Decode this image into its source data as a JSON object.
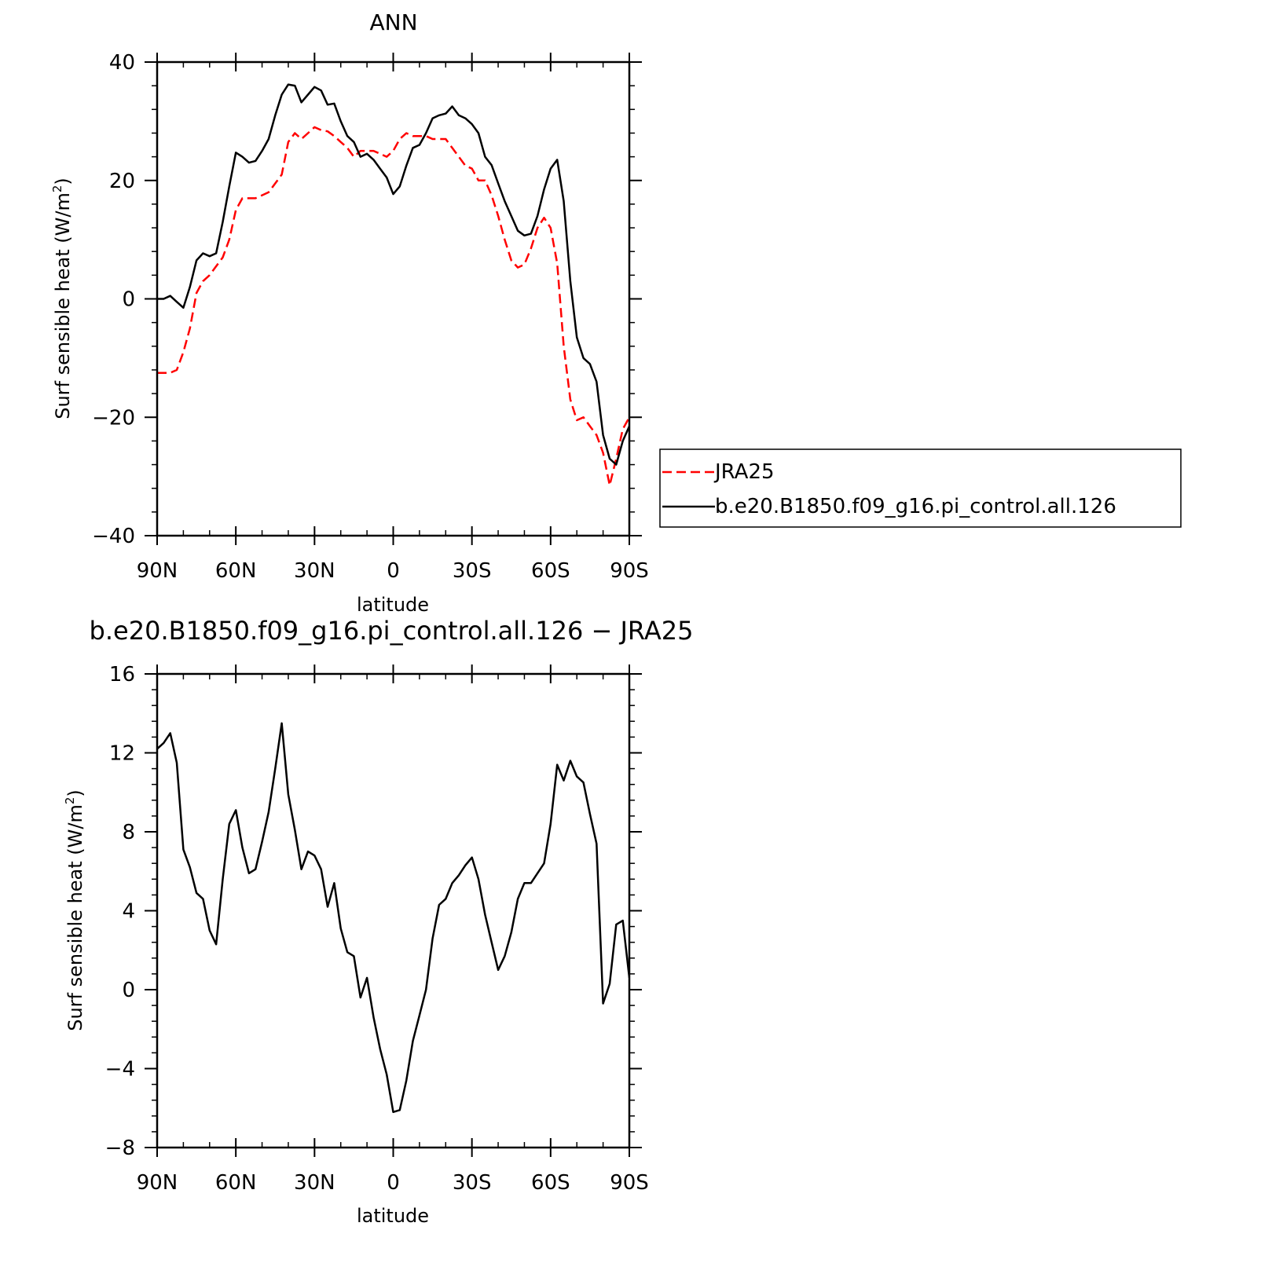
{
  "chart_data": [
    {
      "type": "line",
      "title": "ANN",
      "xlabel": "latitude",
      "ylabel": "Surf sensible heat (W/m",
      "ylabel_sup": "2",
      "ylabel_end": ")",
      "xlim": [
        90,
        -90
      ],
      "ylim": [
        -40,
        40
      ],
      "x_ticks": [
        90,
        60,
        30,
        0,
        -30,
        -60,
        -90
      ],
      "x_tick_labels": [
        "90N",
        "60N",
        "30N",
        "0",
        "30S",
        "60S",
        "90S"
      ],
      "y_ticks": [
        -40,
        -20,
        0,
        20,
        40
      ],
      "y_tick_labels": [
        "−40",
        "−20",
        "0",
        "20",
        "40"
      ],
      "legend": "right",
      "series": [
        {
          "name": "JRA25",
          "color": "#ff0000",
          "dash": "dashed",
          "x": [
            90,
            87.5,
            85,
            82.5,
            80,
            77.5,
            75,
            72.5,
            70,
            67.5,
            65,
            62.5,
            60,
            57.5,
            55,
            52.5,
            50,
            47.5,
            45,
            42.5,
            40,
            37.5,
            35,
            32.5,
            30,
            27.5,
            25,
            22.5,
            20,
            17.5,
            15,
            12.5,
            10,
            7.5,
            5,
            2.5,
            0,
            -2.5,
            -5,
            -7.5,
            -10,
            -12.5,
            -15,
            -17.5,
            -20,
            -22.5,
            -25,
            -27.5,
            -30,
            -32.5,
            -35,
            -37.5,
            -40,
            -42.5,
            -45,
            -47.5,
            -50,
            -52.5,
            -55,
            -57.5,
            -60,
            -62.5,
            -65,
            -67.5,
            -70,
            -72.5,
            -75,
            -77.5,
            -80,
            -82.5,
            -85,
            -87.5,
            -90
          ],
          "values": [
            -12.5,
            -12.5,
            -12.5,
            -12,
            -9,
            -5,
            1,
            3,
            4,
            5.5,
            7,
            10,
            15,
            17,
            17,
            17,
            17.5,
            18,
            19.5,
            21,
            26.5,
            28,
            27,
            28,
            29,
            28.5,
            28.3,
            27.5,
            26.5,
            25.5,
            24,
            25,
            25,
            25,
            24.5,
            24,
            25,
            27,
            28,
            27.5,
            27.5,
            27.5,
            27,
            27,
            27,
            25.5,
            24,
            22.5,
            22,
            20,
            20,
            17.5,
            14,
            10,
            6.5,
            5.3,
            5.8,
            8.5,
            12,
            13.7,
            12,
            6,
            -8,
            -17,
            -20.5,
            -20,
            -21.5,
            -23,
            -26,
            -31.5,
            -27,
            -22,
            -20
          ]
        },
        {
          "name": "b.e20.B1850.f09_g16.pi_control.all.126",
          "color": "#000000",
          "dash": "solid",
          "x": [
            90,
            87.5,
            85,
            82.5,
            80,
            77.5,
            75,
            72.5,
            70,
            67.5,
            65,
            62.5,
            60,
            57.5,
            55,
            52.5,
            50,
            47.5,
            45,
            42.5,
            40,
            37.5,
            35,
            32.5,
            30,
            27.5,
            25,
            22.5,
            20,
            17.5,
            15,
            12.5,
            10,
            7.5,
            5,
            2.5,
            0,
            -2.5,
            -5,
            -7.5,
            -10,
            -12.5,
            -15,
            -17.5,
            -20,
            -22.5,
            -25,
            -27.5,
            -30,
            -32.5,
            -35,
            -37.5,
            -40,
            -42.5,
            -45,
            -47.5,
            -50,
            -52.5,
            -55,
            -57.5,
            -60,
            -62.5,
            -65,
            -67.5,
            -70,
            -72.5,
            -75,
            -77.5,
            -80,
            -82.5,
            -85,
            -87.5,
            -90
          ],
          "values": [
            0,
            0,
            0.5,
            -0.5,
            -1.5,
            2,
            6.5,
            7.7,
            7.2,
            7.7,
            13,
            19,
            24.7,
            24,
            23,
            23.3,
            25,
            27,
            31,
            34.5,
            36.2,
            36,
            33.2,
            34.5,
            35.8,
            35.2,
            32.8,
            33,
            30,
            27.5,
            26.5,
            24,
            24.5,
            23.5,
            22,
            20.5,
            17.7,
            19,
            22.5,
            25.5,
            26,
            28,
            30.5,
            31,
            31.3,
            32.5,
            31,
            30.5,
            29.5,
            28,
            24,
            22.6,
            19.5,
            16.5,
            14,
            11.5,
            10.7,
            11,
            14,
            18.5,
            22,
            23.5,
            16.5,
            3,
            -6.5,
            -10,
            -11,
            -14,
            -23,
            -27,
            -28,
            -24,
            -21.5
          ]
        }
      ]
    },
    {
      "type": "line",
      "title": "b.e20.B1850.f09_g16.pi_control.all.126 − JRA25",
      "xlabel": "latitude",
      "ylabel": "Surf sensible heat (W/m",
      "ylabel_sup": "2",
      "ylabel_end": ")",
      "xlim": [
        90,
        -90
      ],
      "ylim": [
        -8,
        16
      ],
      "x_ticks": [
        90,
        60,
        30,
        0,
        -30,
        -60,
        -90
      ],
      "x_tick_labels": [
        "90N",
        "60N",
        "30N",
        "0",
        "30S",
        "60S",
        "90S"
      ],
      "y_ticks": [
        -8,
        -4,
        0,
        4,
        8,
        12,
        16
      ],
      "y_tick_labels": [
        "−8",
        "−4",
        "0",
        "4",
        "8",
        "12",
        "16"
      ],
      "series": [
        {
          "color": "#000000",
          "dash": "solid",
          "x": [
            90,
            87.5,
            85,
            82.5,
            80,
            77.5,
            75,
            72.5,
            70,
            67.5,
            65,
            62.5,
            60,
            57.5,
            55,
            52.5,
            50,
            47.5,
            45,
            42.5,
            40,
            37.5,
            35,
            32.5,
            30,
            27.5,
            25,
            22.5,
            20,
            17.5,
            15,
            12.5,
            10,
            7.5,
            5,
            2.5,
            0,
            -2.5,
            -5,
            -7.5,
            -10,
            -12.5,
            -15,
            -17.5,
            -20,
            -22.5,
            -25,
            -27.5,
            -30,
            -32.5,
            -35,
            -37.5,
            -40,
            -42.5,
            -45,
            -47.5,
            -50,
            -52.5,
            -55,
            -57.5,
            -60,
            -62.5,
            -65,
            -67.5,
            -70,
            -72.5,
            -75,
            -77.5,
            -80,
            -82.5,
            -85,
            -87.5,
            -90
          ],
          "values": [
            12.2,
            12.5,
            13,
            11.5,
            7.1,
            6.2,
            4.9,
            4.6,
            3,
            2.3,
            5.6,
            8.4,
            9.1,
            7.2,
            5.9,
            6.1,
            7.5,
            9,
            11.2,
            13.5,
            9.9,
            8.1,
            6.1,
            7,
            6.8,
            6.1,
            4.2,
            5.4,
            3.1,
            1.9,
            1.7,
            -0.4,
            0.6,
            -1.4,
            -3,
            -4.3,
            -6.2,
            -6.1,
            -4.6,
            -2.6,
            -1.3,
            0,
            2.6,
            4.3,
            4.6,
            5.4,
            5.8,
            6.3,
            6.7,
            5.6,
            3.8,
            2.4,
            1,
            1.7,
            2.9,
            4.6,
            5.4,
            5.4,
            5.9,
            6.4,
            8.4,
            11.4,
            10.6,
            11.6,
            10.8,
            10.5,
            8.9,
            7.4,
            -0.7,
            0.3,
            3.3,
            3.5,
            0.6
          ]
        }
      ]
    }
  ]
}
